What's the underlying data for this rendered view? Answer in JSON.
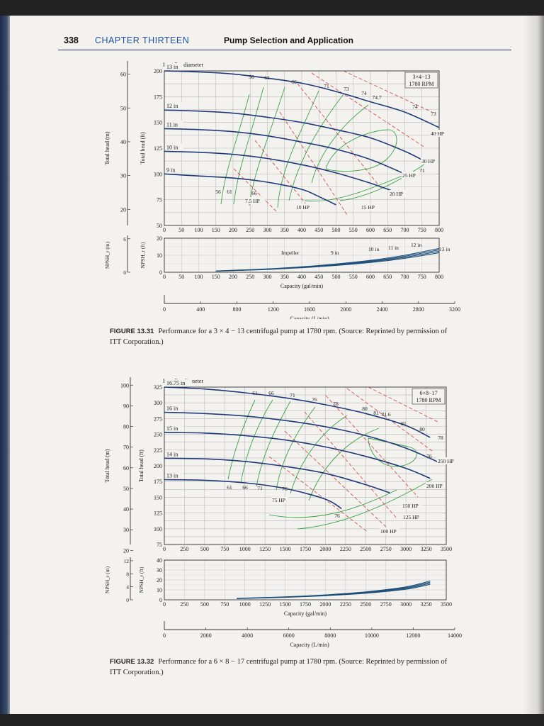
{
  "header": {
    "page_number": "338",
    "chapter": "CHAPTER THIRTEEN",
    "title": "Pump Selection and Application"
  },
  "figures": [
    {
      "caption_label": "FIGURE 13.31",
      "caption_text": "Performance for a 3 × 4 − 13 centrifugal pump at 1780 rpm. (Source: Reprinted by permission of ITT Corporation.)",
      "chart_data": {
        "type": "line",
        "title": "3×4−13 1780 RPM",
        "impeller_label": "Impeller diameter",
        "xlabel_top": "Capacity (gal/min)",
        "xlabel_bottom": "Capacity (L/min)",
        "ylabel_ft": "Total head (ft)",
        "ylabel_m": "Total head (m)",
        "npsh_label_ft": "NPSH_r (ft)",
        "npsh_label_m": "NPSH_r (m)",
        "xlim_gpm": [
          0,
          800
        ],
        "xticks_gpm": [
          0,
          50,
          100,
          150,
          200,
          250,
          300,
          350,
          400,
          450,
          500,
          550,
          600,
          650,
          700,
          750,
          800
        ],
        "xticks_lpm": [
          0,
          400,
          800,
          1200,
          1600,
          2000,
          2400,
          2800,
          3200
        ],
        "ylim_ft": [
          50,
          200
        ],
        "yticks_ft": [
          50,
          75,
          100,
          125,
          150,
          175,
          200
        ],
        "yticks_m": [
          20,
          30,
          40,
          50,
          60
        ],
        "npsh_ylim_ft": [
          0,
          20
        ],
        "npsh_yticks_ft": [
          0,
          10,
          20
        ],
        "npsh_yticks_m": [
          0,
          6
        ],
        "grid": true,
        "series": [
          {
            "name": "13 in",
            "x": [
              0,
              100,
              200,
              300,
              400,
              500,
              600,
              700,
              800
            ],
            "y": [
              200,
              199,
              197,
              193,
              188,
              180,
              170,
              160,
              145
            ]
          },
          {
            "name": "12 in",
            "x": [
              0,
              100,
              200,
              300,
              400,
              500,
              600,
              700,
              760
            ],
            "y": [
              162,
              161,
              159,
              155,
              150,
              143,
              135,
              122,
              112
            ]
          },
          {
            "name": "11 in",
            "x": [
              0,
              100,
              200,
              300,
              400,
              500,
              600,
              700,
              725
            ],
            "y": [
              144,
              143,
              141,
              137,
              131,
              124,
              114,
              100,
              96
            ]
          },
          {
            "name": "10 in",
            "x": [
              0,
              100,
              200,
              300,
              400,
              500,
              600,
              660
            ],
            "y": [
              122,
              121,
              119,
              115,
              109,
              101,
              91,
              84
            ]
          },
          {
            "name": "9 in",
            "x": [
              0,
              100,
              200,
              300,
              400,
              450,
              500
            ],
            "y": [
              100,
              98,
              96,
              92,
              85,
              78,
              70
            ]
          }
        ],
        "efficiency_labels": [
          "56",
          "61",
          "66",
          "71",
          "73",
          "74",
          "74.7",
          "74",
          "73",
          "71",
          "56",
          "61",
          "66"
        ],
        "hp_labels": [
          "40 HP",
          "30 HP",
          "25 HP",
          "20 HP",
          "15 HP",
          "10 HP",
          "7.5 HP"
        ],
        "npsh_curve": {
          "x": [
            150,
            300,
            450,
            600,
            700,
            800
          ],
          "y": [
            0.8,
            2,
            4,
            7,
            10,
            14
          ]
        },
        "npsh_labels": [
          "Impeller",
          "9 in",
          "10 in",
          "11 in",
          "12 in",
          "13 in"
        ]
      }
    },
    {
      "caption_label": "FIGURE 13.32",
      "caption_text": "Performance for a 6 × 8 − 17 centrifugal pump at 1780 rpm. (Source: Reprinted by permission of ITT Corporation.)",
      "chart_data": {
        "type": "line",
        "title": "6×8−17 1780 RPM",
        "impeller_label": "Impeller diameter",
        "xlabel_top": "Capacity (gal/min)",
        "xlabel_bottom": "Capacity (L/min)",
        "ylabel_ft": "Total head (ft)",
        "ylabel_m": "Total head (m)",
        "npsh_label_ft": "NPSH_r (ft)",
        "npsh_label_m": "NPSH_r (m)",
        "xlim_gpm": [
          0,
          3500
        ],
        "xticks_gpm": [
          0,
          250,
          500,
          750,
          1000,
          1250,
          1500,
          1750,
          2000,
          2250,
          2500,
          2750,
          3000,
          3250,
          3500
        ],
        "xticks_lpm": [
          0,
          2000,
          4000,
          6000,
          8000,
          10000,
          12000,
          14000
        ],
        "ylim_ft": [
          75,
          325
        ],
        "yticks_ft": [
          75,
          100,
          125,
          150,
          175,
          200,
          225,
          250,
          275,
          300,
          325
        ],
        "yticks_m": [
          20,
          30,
          40,
          50,
          60,
          70,
          80,
          90,
          100
        ],
        "npsh_ylim_ft": [
          0,
          40
        ],
        "npsh_yticks_ft": [
          0,
          10,
          20,
          30,
          40
        ],
        "npsh_yticks_m": [
          0,
          4,
          8,
          12
        ],
        "grid": true,
        "series": [
          {
            "name": "16.75 in",
            "x": [
              0,
              500,
              1000,
              1500,
              2000,
              2500,
              3000,
              3300
            ],
            "y": [
              325,
              322,
              316,
              308,
              297,
              283,
              264,
              245
            ]
          },
          {
            "name": "16 in",
            "x": [
              0,
              500,
              1000,
              1500,
              2000,
              2500,
              3000,
              3450
            ],
            "y": [
              285,
              283,
              279,
              272,
              262,
              248,
              228,
              203
            ]
          },
          {
            "name": "15 in",
            "x": [
              0,
              500,
              1000,
              1500,
              2000,
              2500,
              3000,
              3300
            ],
            "y": [
              253,
              252,
              248,
              241,
              230,
              215,
              196,
              180
            ]
          },
          {
            "name": "14 in",
            "x": [
              0,
              500,
              1000,
              1500,
              2000,
              2500,
              2800
            ],
            "y": [
              212,
              211,
              207,
              199,
              188,
              170,
              157
            ]
          },
          {
            "name": "13 in",
            "x": [
              0,
              500,
              1000,
              1500,
              2000,
              2200
            ],
            "y": [
              178,
              177,
              173,
              164,
              147,
              132
            ]
          }
        ],
        "efficiency_labels": [
          "61",
          "66",
          "71",
          "76",
          "78",
          "80",
          "81",
          "81.6",
          "81",
          "80",
          "78",
          "76",
          "61",
          "66",
          "71",
          "76",
          "76"
        ],
        "hp_labels": [
          "250 HP",
          "200 HP",
          "150 HP",
          "125 HP",
          "100 HP",
          "75 HP"
        ],
        "npsh_curve": {
          "x": [
            900,
            1500,
            2000,
            2500,
            3000,
            3300
          ],
          "y": [
            1.5,
            3,
            5,
            8,
            13,
            19
          ]
        }
      }
    }
  ]
}
